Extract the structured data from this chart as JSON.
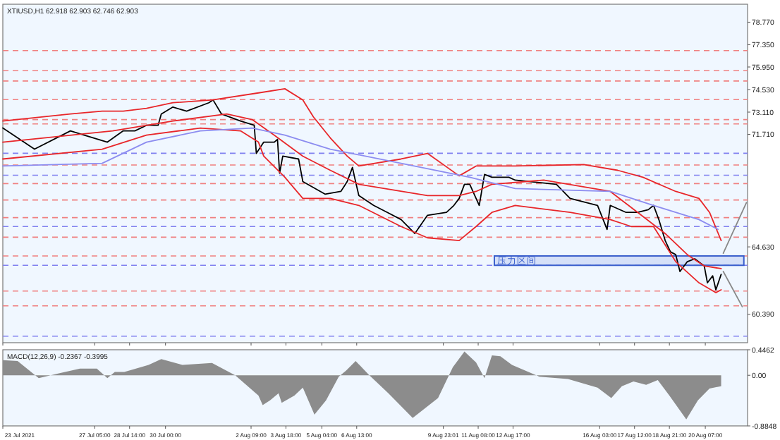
{
  "chart_data": [
    {
      "type": "line",
      "title": "XTIUSD,H1  62.918 62.903 62.746 62.903",
      "xlim": [
        "2021-07-23T14:00",
        "2021-08-21T23:00"
      ],
      "ylim": [
        58.6,
        79.9
      ],
      "tick_labels": "y",
      "xticks": [
        {
          "value": "2021-07-23T14:00",
          "label": null
        },
        {
          "value": "2021-07-27T05:00",
          "label": null
        },
        {
          "value": "2021-07-28T14:00",
          "label": null
        },
        {
          "value": "2021-07-30T00:00",
          "label": null
        },
        {
          "value": "2021-08-02T09:00",
          "label": null
        },
        {
          "value": "2021-08-03T18:00",
          "label": null
        },
        {
          "value": "2021-08-05T04:00",
          "label": null
        },
        {
          "value": "2021-08-06T13:00",
          "label": null
        },
        {
          "value": "2021-08-09T23:01",
          "label": null
        },
        {
          "value": "2021-08-11T08:00",
          "label": null
        },
        {
          "value": "2021-08-12T17:00",
          "label": null
        },
        {
          "value": "2021-08-16T03:00",
          "label": null
        },
        {
          "value": "2021-08-17T12:00",
          "label": null
        },
        {
          "value": "2021-08-18T21:00",
          "label": null
        },
        {
          "value": "2021-08-20T07:00",
          "label": null
        }
      ],
      "yticks": [
        {
          "value": 78.77,
          "label": "78.770"
        },
        {
          "value": 77.35,
          "label": "77.350"
        },
        {
          "value": 75.95,
          "label": "75.950"
        },
        {
          "value": 74.53,
          "label": "74.530"
        },
        {
          "value": 73.11,
          "label": "73.110"
        },
        {
          "value": 71.71,
          "label": "71.710"
        },
        {
          "value": 64.63,
          "label": "64.630"
        },
        {
          "value": 60.39,
          "label": "60.390"
        }
      ],
      "series": [
        {
          "color": "#000000",
          "x": [
            "2021-07-23T14:00",
            "2021-07-24T20:00",
            "2021-07-26T06:00",
            "2021-07-26T19:00",
            "2021-07-27T17:00",
            "2021-07-28T08:00",
            "2021-07-28T19:00",
            "2021-07-29T06:00",
            "2021-07-29T17:00",
            "2021-07-29T20:00",
            "2021-07-30T07:00",
            "2021-07-30T20:00",
            "2021-07-31T17:00",
            "2021-07-31T21:00",
            "2021-08-01T05:00",
            "2021-08-01T23:00",
            "2021-08-02T12:00",
            "2021-08-02T14:00",
            "2021-08-02T21:00",
            "2021-08-03T07:00",
            "2021-08-03T10:00",
            "2021-08-03T12:00",
            "2021-08-03T15:00",
            "2021-08-04T06:00",
            "2021-08-04T10:00",
            "2021-08-05T07:00",
            "2021-08-05T22:00",
            "2021-08-06T04:00",
            "2021-08-06T09:00",
            "2021-08-06T11:00",
            "2021-08-06T15:00",
            "2021-08-07T05:00",
            "2021-08-07T18:00",
            "2021-08-08T07:00",
            "2021-08-08T20:00",
            "2021-08-09T08:00",
            "2021-08-10T02:00",
            "2021-08-10T09:00",
            "2021-08-10T14:00",
            "2021-08-10T19:00",
            "2021-08-11T00:00",
            "2021-08-11T09:00",
            "2021-08-11T14:00",
            "2021-08-11T21:00",
            "2021-08-12T13:00",
            "2021-08-12T19:00",
            "2021-08-14T10:00",
            "2021-08-14T23:00",
            "2021-08-16T01:00",
            "2021-08-16T10:00",
            "2021-08-16T13:00",
            "2021-08-17T04:00",
            "2021-08-17T15:00",
            "2021-08-18T01:00",
            "2021-08-18T06:00",
            "2021-08-18T11:00",
            "2021-08-18T17:00",
            "2021-08-18T22:00",
            "2021-08-19T03:00",
            "2021-08-19T07:00",
            "2021-08-19T14:00",
            "2021-08-19T21:00",
            "2021-08-20T06:00",
            "2021-08-20T09:00",
            "2021-08-20T14:00",
            "2021-08-20T17:00",
            "2021-08-20T22:00"
          ],
          "values": [
            72.11,
            70.78,
            71.93,
            71.66,
            71.22,
            71.93,
            71.93,
            72.28,
            72.28,
            72.99,
            73.43,
            73.17,
            73.7,
            73.88,
            72.99,
            72.55,
            72.28,
            70.51,
            71.22,
            71.22,
            71.4,
            69.27,
            70.34,
            70.16,
            68.74,
            67.95,
            68.12,
            68.74,
            69.63,
            69.01,
            67.86,
            67.24,
            66.8,
            66.35,
            65.47,
            66.62,
            66.8,
            67.24,
            67.68,
            68.57,
            68.57,
            67.24,
            69.19,
            69.01,
            69.01,
            68.83,
            68.57,
            67.68,
            67.24,
            65.73,
            67.24,
            66.8,
            66.8,
            66.97,
            67.24,
            66.35,
            65.03,
            64.32,
            64.14,
            63.08,
            63.7,
            63.88,
            63.43,
            62.37,
            62.81,
            61.93,
            62.9
          ]
        },
        {
          "color": "#e8262a",
          "x": [
            "2021-07-23T14:00",
            "2021-07-26T06:00",
            "2021-07-27T12:00",
            "2021-07-28T08:00",
            "2021-07-29T06:00",
            "2021-07-30T07:00",
            "2021-07-31T21:00",
            "2021-08-02T16:00",
            "2021-08-03T17:00",
            "2021-08-04T10:00",
            "2021-08-04T20:00",
            "2021-08-05T12:00",
            "2021-08-06T04:00",
            "2021-08-06T15:00",
            "2021-08-08T07:00",
            "2021-08-09T08:00",
            "2021-08-10T14:00",
            "2021-08-11T06:00",
            "2021-08-11T21:00",
            "2021-08-12T19:00",
            "2021-08-15T12:00",
            "2021-08-16T20:00",
            "2021-08-17T20:00",
            "2021-08-19T03:00",
            "2021-08-20T01:00",
            "2021-08-20T11:00",
            "2021-08-20T22:00"
          ],
          "values": [
            72.55,
            72.99,
            73.17,
            73.17,
            73.35,
            73.7,
            73.88,
            74.32,
            74.58,
            73.88,
            72.81,
            71.49,
            70.34,
            69.72,
            70.16,
            70.51,
            69.1,
            69.72,
            69.72,
            69.72,
            69.81,
            69.45,
            69.01,
            68.12,
            67.68,
            66.8,
            65.03
          ]
        },
        {
          "color": "#e8262a",
          "x": [
            "2021-07-23T14:00",
            "2021-07-27T22:00",
            "2021-07-30T07:00",
            "2021-08-01T10:00",
            "2021-08-02T10:00",
            "2021-08-03T07:00",
            "2021-08-04T10:00",
            "2021-08-05T12:00",
            "2021-08-06T15:00",
            "2021-08-09T08:00",
            "2021-08-10T14:00",
            "2021-08-11T06:00",
            "2021-08-11T21:00",
            "2021-08-13T22:00",
            "2021-08-16T13:00",
            "2021-08-17T15:00",
            "2021-08-18T17:00",
            "2021-08-19T14:00",
            "2021-08-20T06:00",
            "2021-08-20T22:00"
          ],
          "values": [
            71.22,
            71.93,
            72.55,
            72.99,
            72.64,
            71.66,
            70.34,
            69.45,
            68.57,
            67.86,
            67.86,
            68.12,
            68.57,
            68.83,
            68.12,
            66.8,
            65.47,
            64.14,
            63.43,
            63.26
          ]
        },
        {
          "color": "#e8262a",
          "x": [
            "2021-07-23T14:00",
            "2021-07-27T12:00",
            "2021-07-29T06:00",
            "2021-07-31T09:00",
            "2021-08-01T23:00",
            "2021-08-02T16:00",
            "2021-08-02T21:00",
            "2021-08-03T17:00",
            "2021-08-04T10:00",
            "2021-08-05T12:00",
            "2021-08-06T15:00",
            "2021-08-08T07:00",
            "2021-08-09T08:00",
            "2021-08-10T14:00",
            "2021-08-11T06:00",
            "2021-08-11T21:00",
            "2021-08-12T19:00",
            "2021-08-14T23:00",
            "2021-08-16T13:00",
            "2021-08-17T09:00",
            "2021-08-18T06:00",
            "2021-08-19T03:00",
            "2021-08-20T01:00",
            "2021-08-20T17:00",
            "2021-08-20T22:00"
          ],
          "values": [
            70.16,
            70.78,
            71.66,
            72.11,
            71.93,
            71.22,
            70.34,
            69.01,
            67.68,
            67.68,
            67.24,
            65.91,
            65.2,
            65.03,
            65.91,
            66.8,
            67.24,
            66.8,
            66.35,
            65.91,
            65.91,
            63.7,
            62.37,
            61.75,
            61.93
          ]
        },
        {
          "color": "#8c8cf0",
          "x": [
            "2021-07-23T14:00",
            "2021-07-27T12:00",
            "2021-07-29T06:00",
            "2021-07-31T09:00",
            "2021-08-02T10:00",
            "2021-08-03T17:00",
            "2021-08-05T12:00",
            "2021-08-08T07:00",
            "2021-08-11T00:00",
            "2021-08-12T19:00",
            "2021-08-16T13:00",
            "2021-08-18T06:00",
            "2021-08-20T01:00",
            "2021-08-20T19:00"
          ],
          "values": [
            69.72,
            69.89,
            71.22,
            71.93,
            72.11,
            71.66,
            70.78,
            69.89,
            69.01,
            68.3,
            68.12,
            67.24,
            66.35,
            65.73
          ]
        },
        {
          "color": "#888888",
          "x": [
            "2021-08-21T00:00",
            "2021-08-21T22:00"
          ],
          "values": [
            64.23,
            67.42
          ]
        },
        {
          "color": "#888888",
          "x": [
            "2021-08-21T00:00",
            "2021-08-21T18:00"
          ],
          "values": [
            63.08,
            60.87
          ]
        }
      ],
      "ref_lines": [
        {
          "axis": "y",
          "value": 76.98,
          "color": "#f08080",
          "line_style": "dashed"
        },
        {
          "axis": "y",
          "value": 75.72,
          "color": "#f08080",
          "line_style": "dashed"
        },
        {
          "axis": "y",
          "value": 75.07,
          "color": "#f08080",
          "line_style": "dashed"
        },
        {
          "axis": "y",
          "value": 73.9,
          "color": "#f08080",
          "line_style": "dashed"
        },
        {
          "axis": "y",
          "value": 72.64,
          "color": "#f08080",
          "line_style": "dashed"
        },
        {
          "axis": "y",
          "value": 72.37,
          "color": "#f08080",
          "line_style": "dashed"
        },
        {
          "axis": "y",
          "value": 70.52,
          "color": "#8080f0",
          "line_style": "dashed"
        },
        {
          "axis": "y",
          "value": 69.78,
          "color": "#f08080",
          "line_style": "dashed"
        },
        {
          "axis": "y",
          "value": 69.14,
          "color": "#8080f0",
          "line_style": "dashed"
        },
        {
          "axis": "y",
          "value": 68.61,
          "color": "#f08080",
          "line_style": "dashed"
        },
        {
          "axis": "y",
          "value": 67.58,
          "color": "#f08080",
          "line_style": "dashed"
        },
        {
          "axis": "y",
          "value": 66.47,
          "color": "#f08080",
          "line_style": "dashed"
        },
        {
          "axis": "y",
          "value": 65.91,
          "color": "#8080f0",
          "line_style": "dashed"
        },
        {
          "axis": "y",
          "value": 65.24,
          "color": "#f08080",
          "line_style": "dashed"
        },
        {
          "axis": "y",
          "value": 64.06,
          "color": "#f08080",
          "line_style": "dashed"
        },
        {
          "axis": "y",
          "value": 63.47,
          "color": "#8080f0",
          "line_style": "dashed"
        },
        {
          "axis": "y",
          "value": 61.85,
          "color": "#f08080",
          "line_style": "dashed"
        },
        {
          "axis": "y",
          "value": 60.92,
          "color": "#f08080",
          "line_style": "dashed"
        },
        {
          "axis": "y",
          "value": 59.01,
          "color": "#8080f0",
          "line_style": "dashed"
        }
      ],
      "bands": [
        {
          "axis": "y",
          "from": 63.47,
          "to": 64.06,
          "label": "压力区间",
          "color": "#3a5fcd"
        }
      ]
    },
    {
      "type": "area",
      "title": "MACD(12,26,9) -0.2367 -0.3995",
      "xlim": [
        "2021-07-23T14:00",
        "2021-08-21T23:00"
      ],
      "ylim": [
        -0.8848,
        0.4462
      ],
      "xticks": [
        {
          "value": "2021-07-23T14:00",
          "label": "23 Jul 2021"
        },
        {
          "value": "2021-07-27T05:00",
          "label": "27 Jul 05:00"
        },
        {
          "value": "2021-07-28T14:00",
          "label": "28 Jul 14:00"
        },
        {
          "value": "2021-07-30T00:00",
          "label": "30 Jul 00:00"
        },
        {
          "value": "2021-08-02T09:00",
          "label": "2 Aug 09:00"
        },
        {
          "value": "2021-08-03T18:00",
          "label": "3 Aug 18:00"
        },
        {
          "value": "2021-08-05T04:00",
          "label": "5 Aug 04:00"
        },
        {
          "value": "2021-08-06T13:00",
          "label": "6 Aug 13:00"
        },
        {
          "value": "2021-08-09T23:01",
          "label": "9 Aug 23:01"
        },
        {
          "value": "2021-08-11T08:00",
          "label": "11 Aug 08:00"
        },
        {
          "value": "2021-08-12T17:00",
          "label": "12 Aug 17:00"
        },
        {
          "value": "2021-08-16T03:00",
          "label": "16 Aug 03:00"
        },
        {
          "value": "2021-08-17T12:00",
          "label": "17 Aug 12:00"
        },
        {
          "value": "2021-08-18T21:00",
          "label": "18 Aug 21:00"
        },
        {
          "value": "2021-08-20T07:00",
          "label": "20 Aug 07:00"
        }
      ],
      "yticks": [
        {
          "value": 0.4462,
          "label": "0.4462"
        },
        {
          "value": 0,
          "label": "0.00"
        },
        {
          "value": -0.8848,
          "label": "-0.8848"
        }
      ],
      "series": [
        {
          "color": "#8c8c8c",
          "x": [
            "2021-07-23T14:00",
            "2021-07-24T04:00",
            "2021-07-25T00:00",
            "2021-07-25T19:00",
            "2021-07-26T15:00",
            "2021-07-27T07:00",
            "2021-07-27T17:00",
            "2021-07-28T00:00",
            "2021-07-28T09:00",
            "2021-07-28T20:00",
            "2021-07-29T08:00",
            "2021-07-29T20:00",
            "2021-07-30T16:00",
            "2021-07-31T20:00",
            "2021-08-01T18:00",
            "2021-08-02T16:00",
            "2021-08-02T20:00",
            "2021-08-03T03:00",
            "2021-08-03T11:00",
            "2021-08-03T14:00",
            "2021-08-04T02:00",
            "2021-08-04T10:00",
            "2021-08-04T21:00",
            "2021-08-05T08:00",
            "2021-08-05T20:00",
            "2021-08-06T03:00",
            "2021-08-06T12:00",
            "2021-08-07T01:00",
            "2021-08-07T19:00",
            "2021-08-08T18:00",
            "2021-08-09T18:00",
            "2021-08-10T08:00",
            "2021-08-10T19:00",
            "2021-08-11T06:00",
            "2021-08-11T14:00",
            "2021-08-11T21:00",
            "2021-08-12T05:00",
            "2021-08-12T16:00",
            "2021-08-13T18:00",
            "2021-08-14T21:00",
            "2021-08-16T01:00",
            "2021-08-16T14:00",
            "2021-08-17T00:00",
            "2021-08-17T11:00",
            "2021-08-17T23:00",
            "2021-08-18T10:00",
            "2021-08-18T21:00",
            "2021-08-19T13:00",
            "2021-08-20T00:00",
            "2021-08-20T11:00",
            "2021-08-20T22:00"
          ],
          "values": [
            0.265,
            0.249,
            -0.05,
            0.033,
            0.116,
            0.116,
            -0.05,
            0.058,
            0.058,
            0.116,
            0.182,
            0.282,
            0.182,
            0.216,
            0,
            -0.356,
            -0.522,
            -0.439,
            -0.315,
            -0.481,
            -0.356,
            -0.216,
            -0.688,
            -0.439,
            -0.025,
            0.083,
            0.249,
            0,
            -0.315,
            -0.746,
            -0.398,
            0.141,
            0.415,
            0.224,
            -0.05,
            0.348,
            0.332,
            0.182,
            -0.025,
            -0.066,
            -0.216,
            -0.398,
            -0.191,
            -0.108,
            -0.166,
            -0.083,
            -0.356,
            -0.771,
            -0.439,
            -0.232,
            -0.191
          ]
        }
      ]
    }
  ]
}
